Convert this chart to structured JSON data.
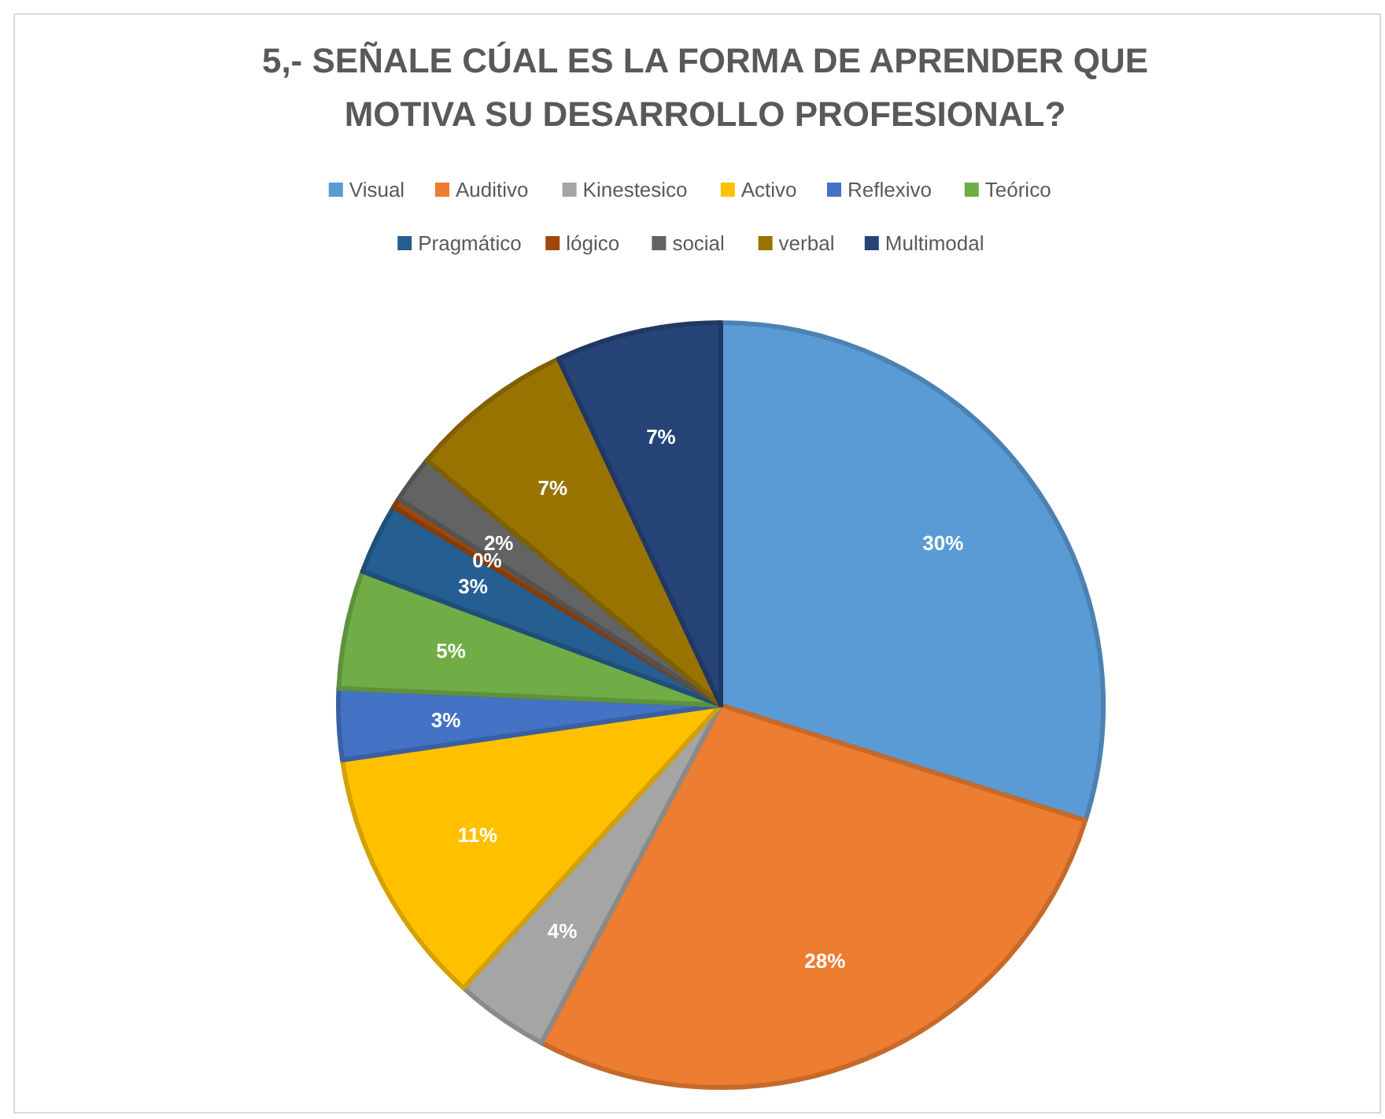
{
  "chart_data": {
    "type": "pie",
    "title": "5,- SEÑALE CÚAL ES LA FORMA DE APRENDER QUE MOTIVA SU DESARROLLO PROFESIONAL?",
    "categories": [
      "Visual",
      "Auditivo",
      "Kinestesico",
      "Activo",
      "Reflexivo",
      "Teórico",
      "Pragmático",
      "lógico",
      "social",
      "verbal",
      "Multimodal"
    ],
    "values": [
      30,
      28,
      4,
      11,
      3,
      5,
      3,
      0.4,
      2,
      7,
      7
    ],
    "value_labels": [
      "30%",
      "28%",
      "4%",
      "11%",
      "3%",
      "5%",
      "3%",
      "0%",
      "2%",
      "7%",
      "7%"
    ],
    "colors": [
      "#5b9bd5",
      "#ed7d31",
      "#a5a5a5",
      "#ffc000",
      "#4472c4",
      "#70ad47",
      "#255e91",
      "#9e480e",
      "#636363",
      "#997300",
      "#264478"
    ],
    "legend": "top"
  }
}
